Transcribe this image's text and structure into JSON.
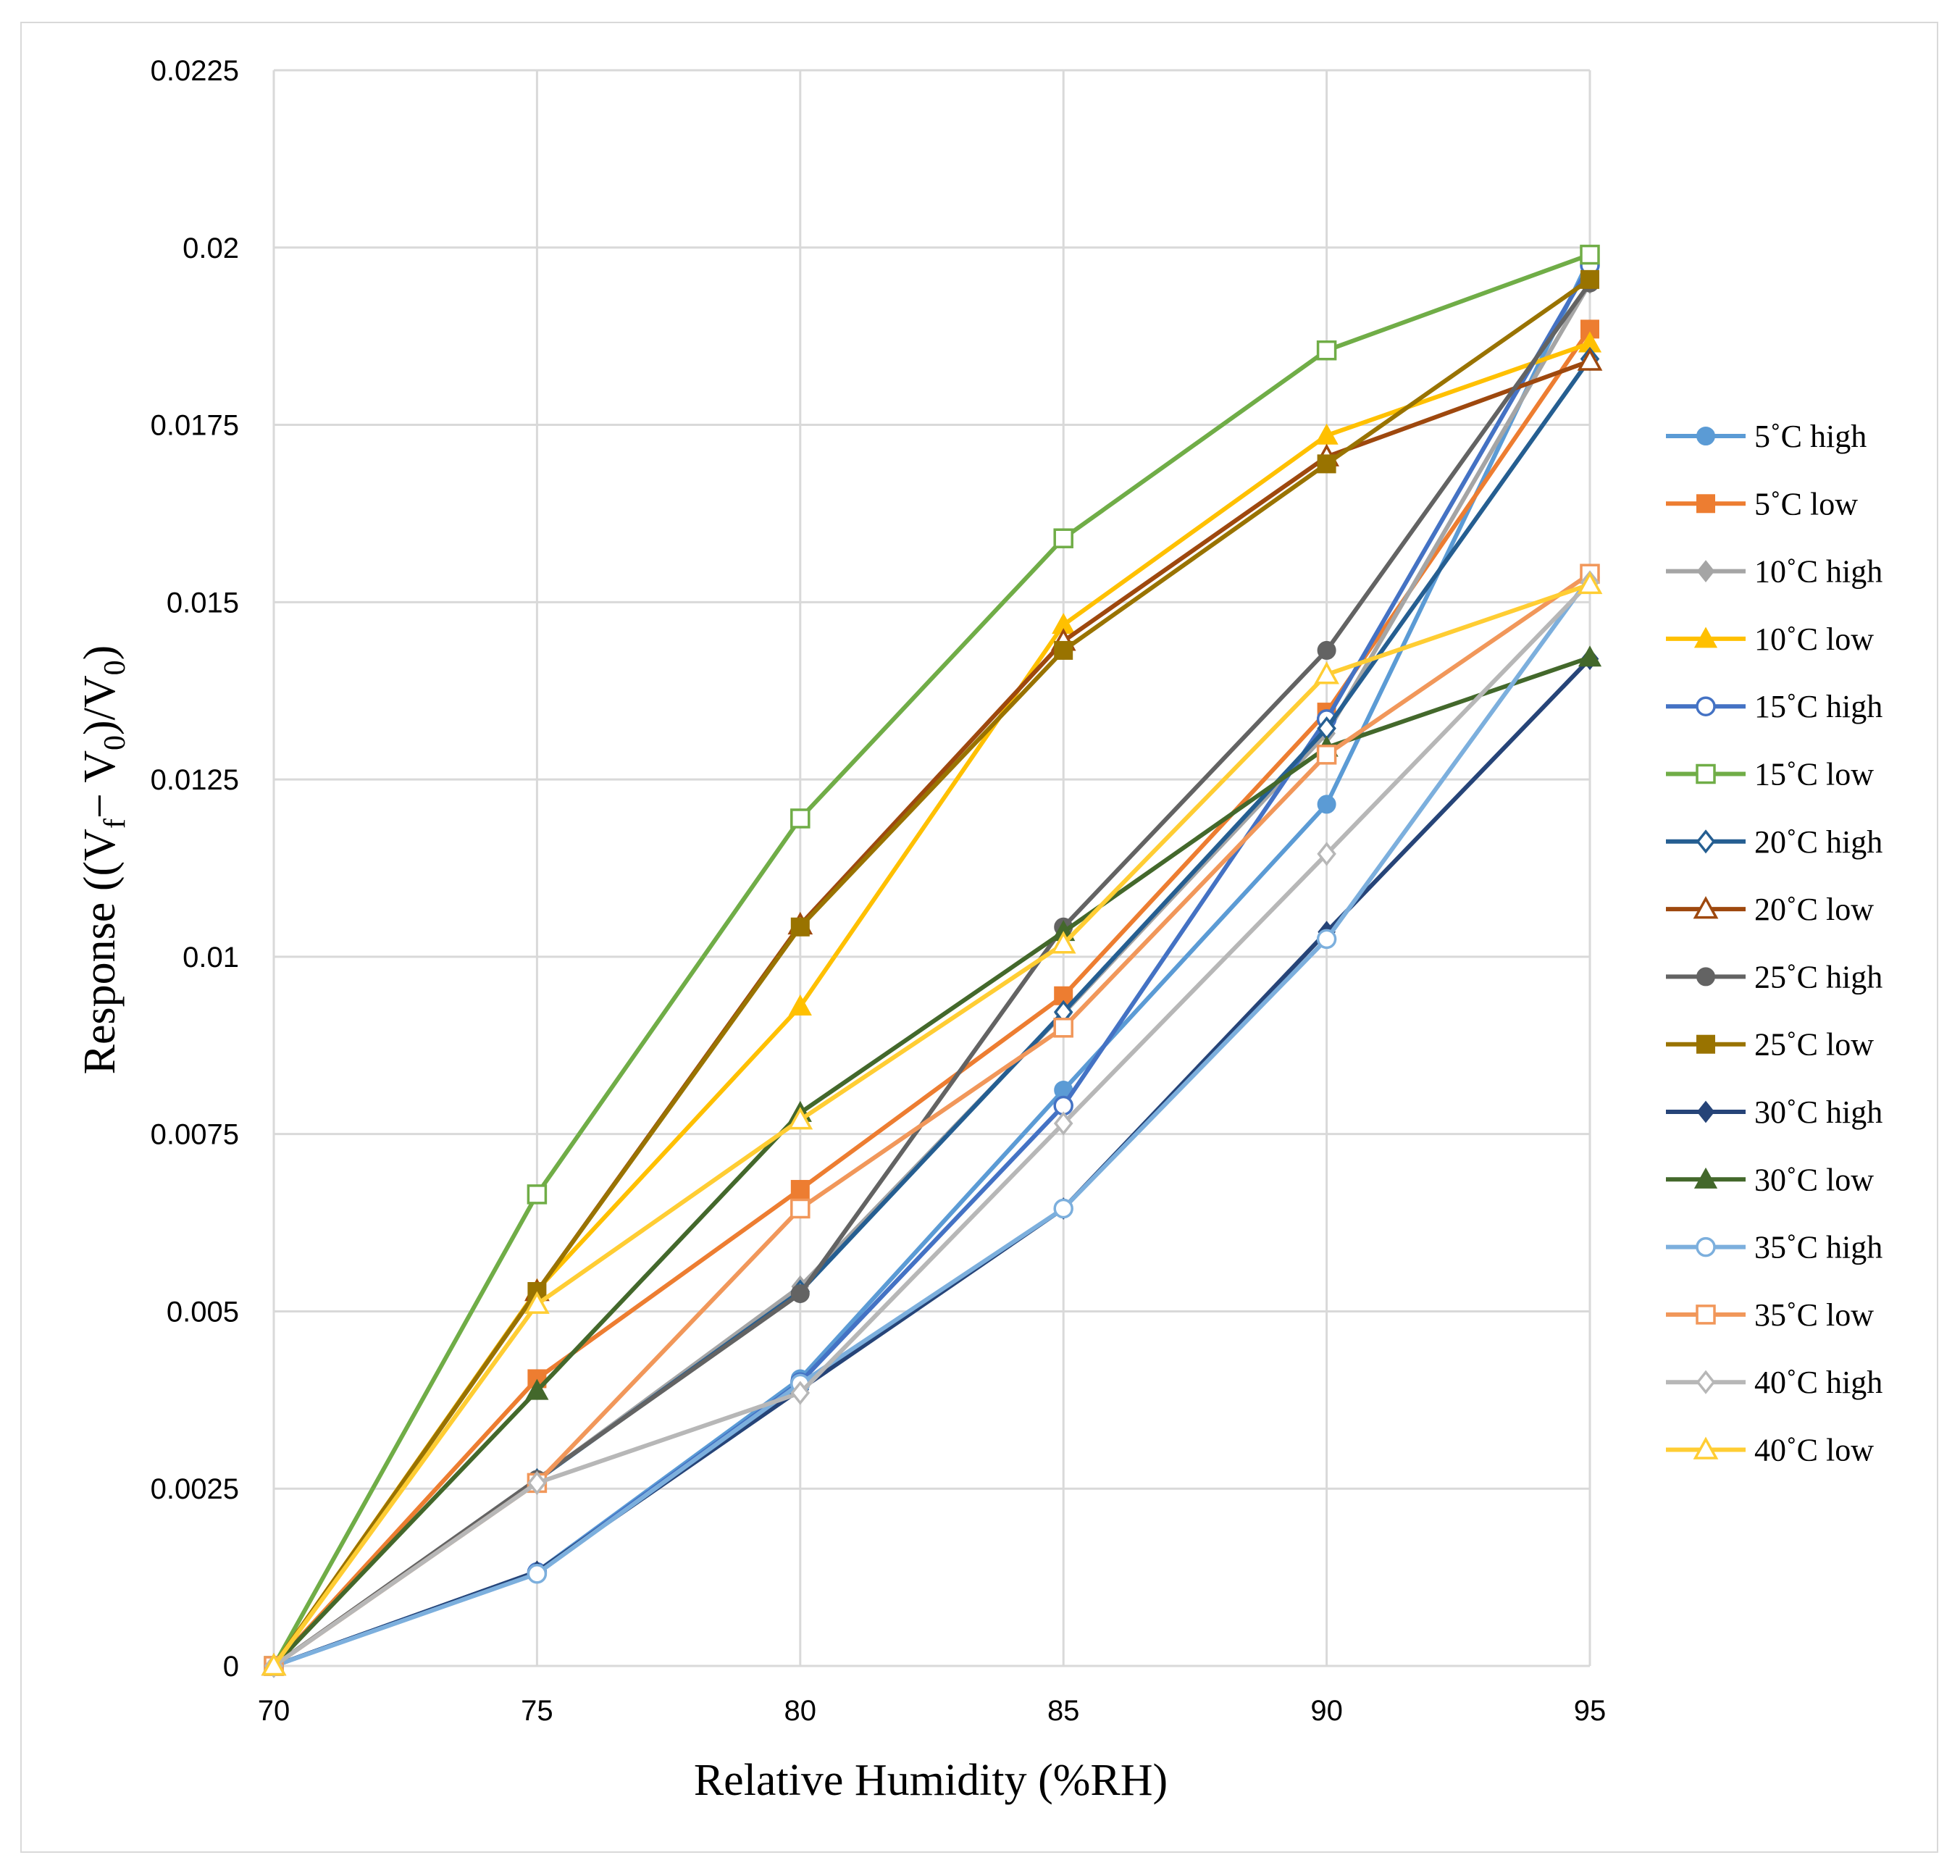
{
  "chart_data": {
    "type": "line",
    "xlabel": "Relative Humidity (%RH)",
    "ylabel": "Response ((V_f − V_0)/V_0)",
    "ylabel_parts": [
      "Response ((V",
      "f",
      "− V",
      "0",
      ")/V",
      "0",
      ")"
    ],
    "x": [
      70,
      75,
      80,
      85,
      90,
      95
    ],
    "xlim": [
      70,
      95
    ],
    "ylim": [
      0,
      0.0225
    ],
    "x_ticks": [
      "70",
      "75",
      "80",
      "85",
      "90",
      "95"
    ],
    "y_ticks": [
      "0",
      "0.0025",
      "0.005",
      "0.0075",
      "0.01",
      "0.0125",
      "0.015",
      "0.0175",
      "0.02",
      "0.0225"
    ],
    "grid": true,
    "legend_position": "right",
    "series": [
      {
        "name": "5˚C high",
        "color": "#5b9bd5",
        "marker": "circle",
        "fill": "solid",
        "values": [
          0,
          0.00133,
          0.00405,
          0.00812,
          0.01215,
          0.01985
        ]
      },
      {
        "name": "5˚C low",
        "color": "#ed7d31",
        "marker": "square",
        "fill": "solid",
        "values": [
          0,
          0.00405,
          0.00672,
          0.00945,
          0.01345,
          0.01885
        ]
      },
      {
        "name": "10˚C high",
        "color": "#a5a5a5",
        "marker": "diamond",
        "fill": "solid",
        "values": [
          0,
          0.00262,
          0.00535,
          0.0092,
          0.01315,
          0.0195
        ]
      },
      {
        "name": "10˚C low",
        "color": "#ffc000",
        "marker": "triangle",
        "fill": "solid",
        "values": [
          0,
          0.0053,
          0.0093,
          0.01468,
          0.01735,
          0.01865
        ]
      },
      {
        "name": "15˚C high",
        "color": "#4472c4",
        "marker": "circle",
        "fill": "hollow",
        "values": [
          0,
          0.00132,
          0.004,
          0.0079,
          0.01335,
          0.01975
        ]
      },
      {
        "name": "15˚C low",
        "color": "#70ad47",
        "marker": "square",
        "fill": "hollow",
        "values": [
          0,
          0.00665,
          0.01195,
          0.0159,
          0.01855,
          0.0199
        ]
      },
      {
        "name": "20˚C high",
        "color": "#255e91",
        "marker": "diamond",
        "fill": "hollow",
        "values": [
          0,
          0.00262,
          0.00528,
          0.00922,
          0.01322,
          0.01843
        ]
      },
      {
        "name": "20˚C low",
        "color": "#9e480e",
        "marker": "triangle",
        "fill": "hollow",
        "values": [
          0,
          0.00528,
          0.01045,
          0.01445,
          0.01705,
          0.0184
        ]
      },
      {
        "name": "25˚C high",
        "color": "#636363",
        "marker": "circle",
        "fill": "solid",
        "values": [
          0,
          0.00263,
          0.00525,
          0.01042,
          0.01432,
          0.0195
        ]
      },
      {
        "name": "25˚C low",
        "color": "#997300",
        "marker": "square",
        "fill": "solid",
        "values": [
          0,
          0.00528,
          0.01042,
          0.01432,
          0.01695,
          0.01955
        ]
      },
      {
        "name": "30˚C high",
        "color": "#264478",
        "marker": "diamond",
        "fill": "solid",
        "values": [
          0,
          0.00133,
          0.0039,
          0.00645,
          0.01035,
          0.0142
        ]
      },
      {
        "name": "30˚C low",
        "color": "#43682b",
        "marker": "triangle",
        "fill": "solid",
        "values": [
          0,
          0.00388,
          0.0078,
          0.01035,
          0.01295,
          0.01422
        ]
      },
      {
        "name": "35˚C high",
        "color": "#7cafdd",
        "marker": "circle",
        "fill": "hollow",
        "values": [
          0,
          0.0013,
          0.00398,
          0.00645,
          0.01025,
          0.01535
        ]
      },
      {
        "name": "35˚C low",
        "color": "#f1975a",
        "marker": "square",
        "fill": "hollow",
        "values": [
          0,
          0.00258,
          0.00645,
          0.009,
          0.01285,
          0.0154
        ]
      },
      {
        "name": "40˚C high",
        "color": "#b7b7b7",
        "marker": "diamond",
        "fill": "hollow",
        "values": [
          0,
          0.00258,
          0.00385,
          0.00765,
          0.01145,
          0.01528
        ]
      },
      {
        "name": "40˚C low",
        "color": "#ffcd33",
        "marker": "triangle",
        "fill": "hollow",
        "values": [
          0,
          0.0051,
          0.0077,
          0.01018,
          0.01398,
          0.01525
        ]
      }
    ]
  }
}
